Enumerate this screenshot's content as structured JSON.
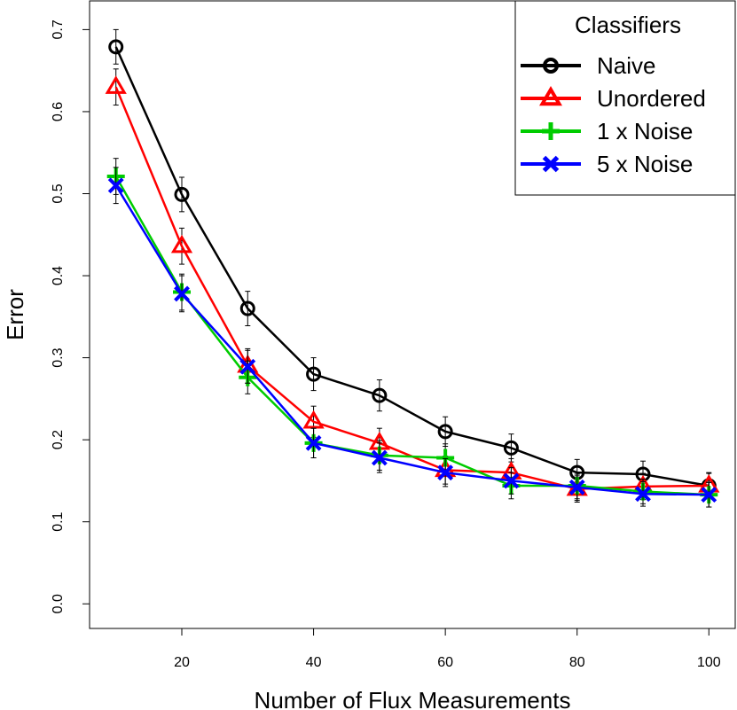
{
  "chart_data": {
    "type": "line",
    "title": "",
    "xlabel": "Number of Flux Measurements",
    "ylabel": "Error",
    "x": [
      10,
      20,
      30,
      40,
      50,
      60,
      70,
      80,
      90,
      100
    ],
    "xlim": [
      6,
      104
    ],
    "ylim": [
      -0.03,
      0.735
    ],
    "x_ticks": [
      20,
      40,
      60,
      80,
      100
    ],
    "x_tick_labels": [
      "20",
      "40",
      "60",
      "80",
      "100"
    ],
    "y_ticks": [
      0.0,
      0.1,
      0.2,
      0.3,
      0.4,
      0.5,
      0.6,
      0.7
    ],
    "y_tick_labels": [
      "0.0",
      "0.1",
      "0.2",
      "0.3",
      "0.4",
      "0.5",
      "0.6",
      "0.7"
    ],
    "grid": false,
    "legend": {
      "title": "Classifiers",
      "position": "top-right"
    },
    "series": [
      {
        "name": "Naive",
        "color": "#000000",
        "marker": "circle",
        "values": [
          0.679,
          0.499,
          0.36,
          0.28,
          0.254,
          0.21,
          0.19,
          0.16,
          0.158,
          0.144
        ],
        "errors": [
          0.021,
          0.021,
          0.021,
          0.02,
          0.019,
          0.018,
          0.017,
          0.016,
          0.016,
          0.015
        ]
      },
      {
        "name": "Unordered",
        "color": "#ff0000",
        "marker": "triangle",
        "values": [
          0.63,
          0.436,
          0.29,
          0.222,
          0.196,
          0.163,
          0.16,
          0.14,
          0.143,
          0.144
        ],
        "errors": [
          0.022,
          0.022,
          0.021,
          0.019,
          0.018,
          0.017,
          0.017,
          0.016,
          0.016,
          0.016
        ]
      },
      {
        "name": "1 x Noise",
        "color": "#00cc00",
        "marker": "plus",
        "values": [
          0.521,
          0.38,
          0.276,
          0.196,
          0.181,
          0.178,
          0.144,
          0.144,
          0.137,
          0.133
        ],
        "errors": [
          0.022,
          0.022,
          0.02,
          0.018,
          0.018,
          0.017,
          0.016,
          0.016,
          0.015,
          0.015
        ]
      },
      {
        "name": "5 x Noise",
        "color": "#0000ff",
        "marker": "x",
        "values": [
          0.51,
          0.378,
          0.289,
          0.196,
          0.178,
          0.16,
          0.15,
          0.142,
          0.134,
          0.133
        ],
        "errors": [
          0.022,
          0.022,
          0.02,
          0.018,
          0.018,
          0.017,
          0.016,
          0.016,
          0.015,
          0.015
        ]
      }
    ]
  }
}
